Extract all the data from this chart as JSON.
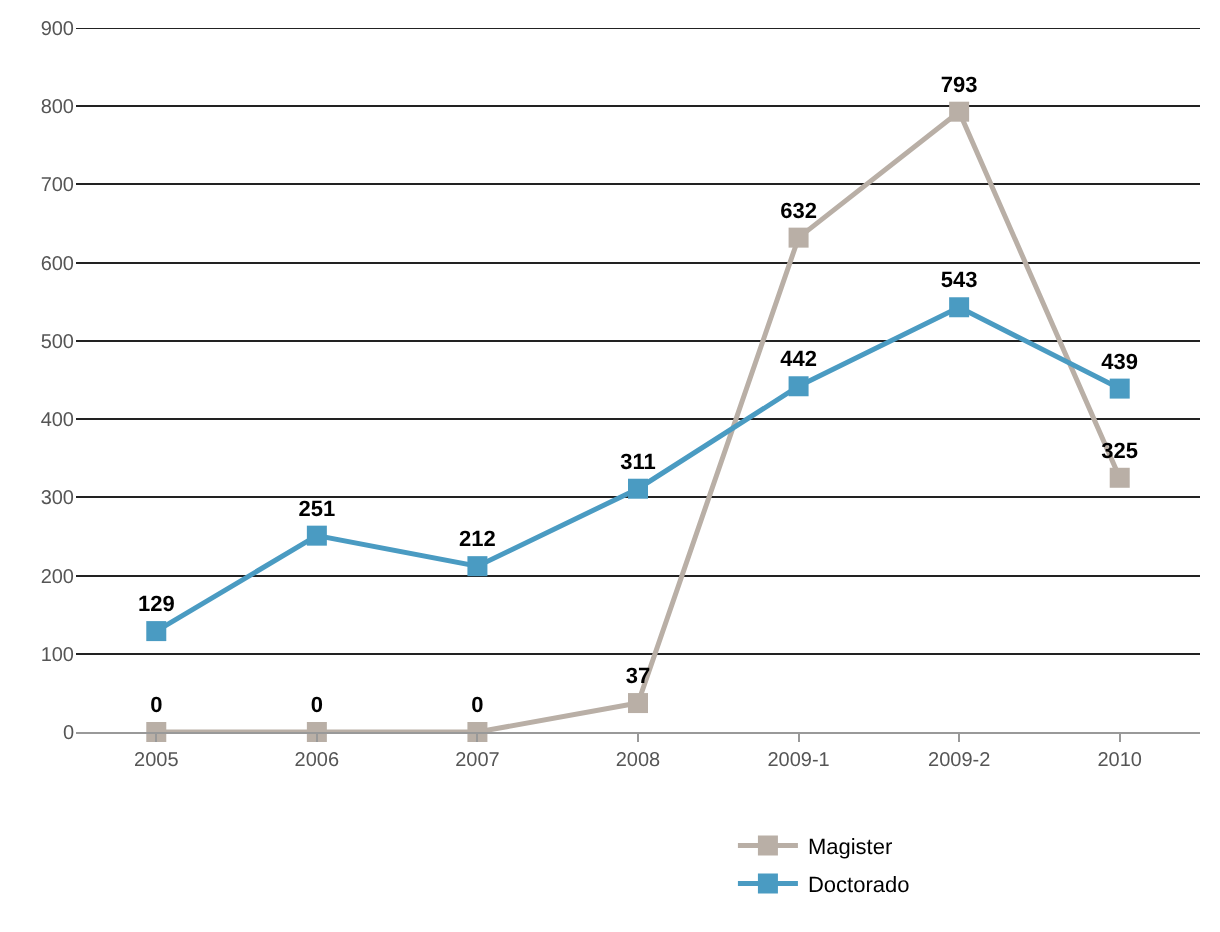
{
  "chart_data": {
    "type": "line",
    "categories": [
      "2005",
      "2006",
      "2007",
      "2008",
      "2009-1",
      "2009-2",
      "2010"
    ],
    "series": [
      {
        "name": "Magister",
        "color": "#b9afa6",
        "values": [
          0,
          0,
          0,
          37,
          632,
          793,
          325
        ]
      },
      {
        "name": "Doctorado",
        "color": "#4a9bc2",
        "values": [
          129,
          251,
          212,
          311,
          442,
          543,
          439
        ]
      }
    ],
    "ylim": [
      0,
      900
    ],
    "yticks": [
      0,
      100,
      200,
      300,
      400,
      500,
      600,
      700,
      800,
      900
    ],
    "grid": "y",
    "legend": "bottom",
    "marker": "square",
    "line_style": "solid",
    "data_labels": true
  }
}
